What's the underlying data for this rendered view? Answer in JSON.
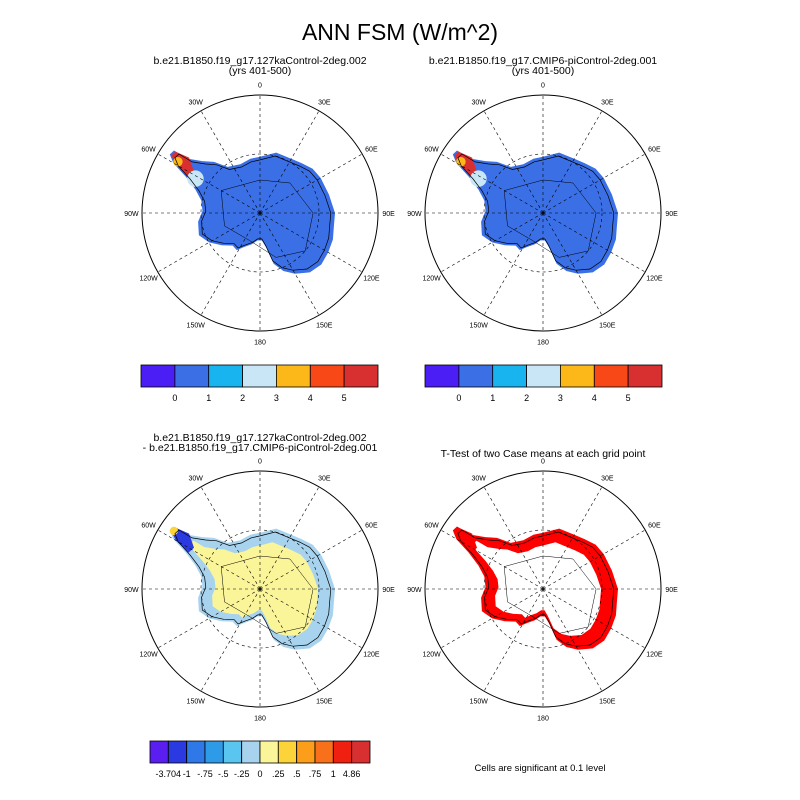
{
  "figure": {
    "title": "ANN FSM (W/m^2)"
  },
  "colors": {
    "ice_blue": "#3a6fe6",
    "coast_line": "#000000",
    "diff_yellow": "#fbf59a",
    "diff_lightblue": "#a8d3ef",
    "ttest_red": "#ff0000"
  },
  "panels": [
    {
      "id": "case1",
      "title_line1": "b.e21.B1850.f19_g17.127kaControl-2deg.002",
      "title_line2": "(yrs 401-500)"
    },
    {
      "id": "case2",
      "title_line1": "b.e21.B1850.f19_g17.CMIP6-piControl-2deg.001",
      "title_line2": "(yrs 401-500)"
    },
    {
      "id": "diff",
      "title_line1": "b.e21.B1850.f19_g17.127kaControl-2deg.002",
      "title_line2": "- b.e21.B1850.f19_g17.CMIP6-piControl-2deg.001"
    },
    {
      "id": "ttest",
      "title_line1": "T-Test of two Case means at each grid point",
      "title_line2": ""
    }
  ],
  "map_lon_labels": [
    "0",
    "30E",
    "60E",
    "90E",
    "120E",
    "150E",
    "180",
    "150W",
    "120W",
    "90W",
    "60W",
    "30W"
  ],
  "colorbars": {
    "abs": {
      "colors": [
        "#4a1ef5",
        "#3a6fe6",
        "#18b4f0",
        "#c8e6f5",
        "#fcb818",
        "#f84818",
        "#d83030"
      ],
      "labels": [
        "0",
        "1",
        "2",
        "3",
        "4",
        "5"
      ]
    },
    "diff": {
      "colors": [
        "#5a1ef0",
        "#2a3ae0",
        "#2e78e8",
        "#2e9be8",
        "#5ac6f0",
        "#a8d3ef",
        "#fbf59a",
        "#fcd43a",
        "#fc9e1a",
        "#f8701a",
        "#f02010",
        "#d83030"
      ],
      "labels": [
        "-3.704",
        "-1",
        "-.75",
        "-.5",
        "-.25",
        "0",
        ".25",
        ".5",
        ".75",
        "1",
        "4.86"
      ]
    }
  },
  "footnote": "Cells are significant at 0.1 level",
  "chart_data": [
    {
      "type": "heatmap",
      "projection": "south polar stereographic",
      "title": "b.e21.B1850.f19_g17.127kaControl-2deg.002 (yrs 401-500)",
      "variable": "ANN FSM",
      "units": "W/m^2",
      "levels": [
        0,
        1,
        2,
        3,
        4,
        5
      ],
      "dominant_value_range": [
        0,
        1
      ],
      "note": "Ice sheet mostly 0-1; Antarctic Peninsula reaches 5+"
    },
    {
      "type": "heatmap",
      "projection": "south polar stereographic",
      "title": "b.e21.B1850.f19_g17.CMIP6-piControl-2deg.001 (yrs 401-500)",
      "variable": "ANN FSM",
      "units": "W/m^2",
      "levels": [
        0,
        1,
        2,
        3,
        4,
        5
      ],
      "dominant_value_range": [
        0,
        1
      ],
      "note": "Ice sheet mostly 0-1; Antarctic Peninsula reaches 5+"
    },
    {
      "type": "heatmap",
      "projection": "south polar stereographic",
      "title": "Difference (127kaControl - CMIP6-piControl)",
      "levels": [
        -3.704,
        -1,
        -0.75,
        -0.5,
        -0.25,
        0,
        0.25,
        0.5,
        0.75,
        1,
        4.86
      ],
      "note": "Interior 0 to .25; margins -.25 to 0; peninsula strongly negative"
    },
    {
      "type": "heatmap",
      "projection": "south polar stereographic",
      "title": "T-Test of two Case means at each grid point",
      "note": "Significant cells (0.1 level) along the ice sheet margin"
    }
  ]
}
